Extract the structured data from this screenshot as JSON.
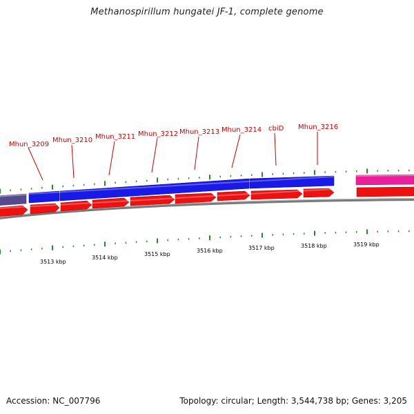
{
  "title": "Methanospirillum hungatei JF-1, complete genome",
  "footer": {
    "accession": "Accession: NC_007796",
    "summary": "Topology: circular; Length: 3,544,738 bp; Genes: 3,205"
  },
  "colors": {
    "gene_label": "#cc0000",
    "forward_track": "#0000ee",
    "reverse_track": "#ee0000",
    "backbone": "#888888",
    "tick": "#228b22",
    "other_feature": "#554b8c",
    "pink_feature": "#e8209c"
  },
  "gene_labels": [
    {
      "text": "Mhun_3209"
    },
    {
      "text": "Mhun_3210"
    },
    {
      "text": "Mhun_3211"
    },
    {
      "text": "Mhun_3212"
    },
    {
      "text": "Mhun_3213"
    },
    {
      "text": "Mhun_3214"
    },
    {
      "text": "cbiD"
    },
    {
      "text": "Mhun_3216"
    }
  ],
  "kbp_labels": [
    "3513 kbp",
    "3514 kbp",
    "3515 kbp",
    "3516 kbp",
    "3517 kbp",
    "3518 kbp",
    "3519 kbp"
  ]
}
